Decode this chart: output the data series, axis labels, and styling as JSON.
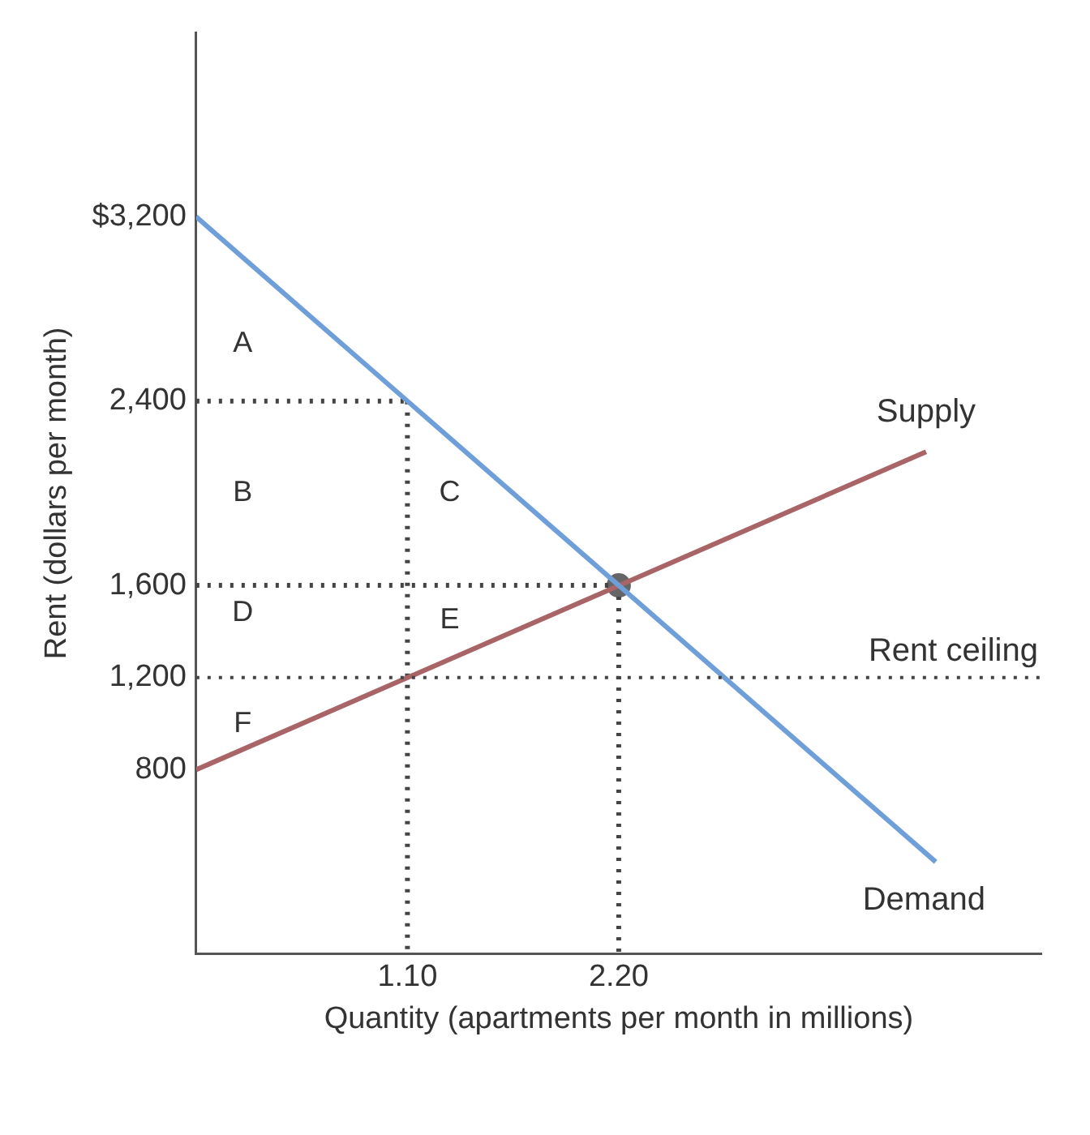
{
  "chart_data": {
    "type": "line",
    "xlabel": "Quantity (apartments per month in millions)",
    "ylabel": "Rent (dollars per month)",
    "xlim": [
      0,
      4.4
    ],
    "ylim": [
      0,
      4000
    ],
    "xticks": [
      {
        "value": 1.1,
        "label": "1.10"
      },
      {
        "value": 2.2,
        "label": "2.20"
      }
    ],
    "yticks": [
      {
        "value": 800,
        "label": "800"
      },
      {
        "value": 1200,
        "label": "1,200"
      },
      {
        "value": 1600,
        "label": "1,600"
      },
      {
        "value": 2400,
        "label": "2,400"
      },
      {
        "value": 3200,
        "label": "$3,200"
      }
    ],
    "grid": false,
    "legend": false,
    "marker": "none",
    "line_style": "solid",
    "series": [
      {
        "name": "Demand",
        "color": "#6f9fd8",
        "x": [
          0,
          3.85
        ],
        "values": [
          3200,
          400
        ]
      },
      {
        "name": "Supply",
        "color": "#a86466",
        "x": [
          0,
          3.8
        ],
        "values": [
          800,
          2180
        ]
      },
      {
        "color": "#444444",
        "x": [
          0,
          1.1
        ],
        "values": [
          2400,
          2400
        ],
        "line_style": "dotted"
      },
      {
        "color": "#444444",
        "x": [
          0,
          2.2
        ],
        "values": [
          1600,
          1600
        ],
        "line_style": "dotted"
      },
      {
        "color": "#444444",
        "x": [
          1.1,
          1.1
        ],
        "values": [
          2400,
          0
        ],
        "line_style": "dotted"
      },
      {
        "color": "#444444",
        "x": [
          2.2,
          2.2
        ],
        "values": [
          1600,
          0
        ],
        "line_style": "dotted"
      },
      {
        "type": "scatter",
        "color": "#666666",
        "x": [
          2.2
        ],
        "values": [
          1600
        ],
        "marker": "circle"
      }
    ],
    "ref_lines": [
      {
        "axis": "y",
        "value": 1200,
        "label": "Rent ceiling",
        "color": "#444444",
        "line_style": "dotted"
      }
    ],
    "annotations": [
      "A",
      "B",
      "C",
      "D",
      "E",
      "F"
    ]
  }
}
